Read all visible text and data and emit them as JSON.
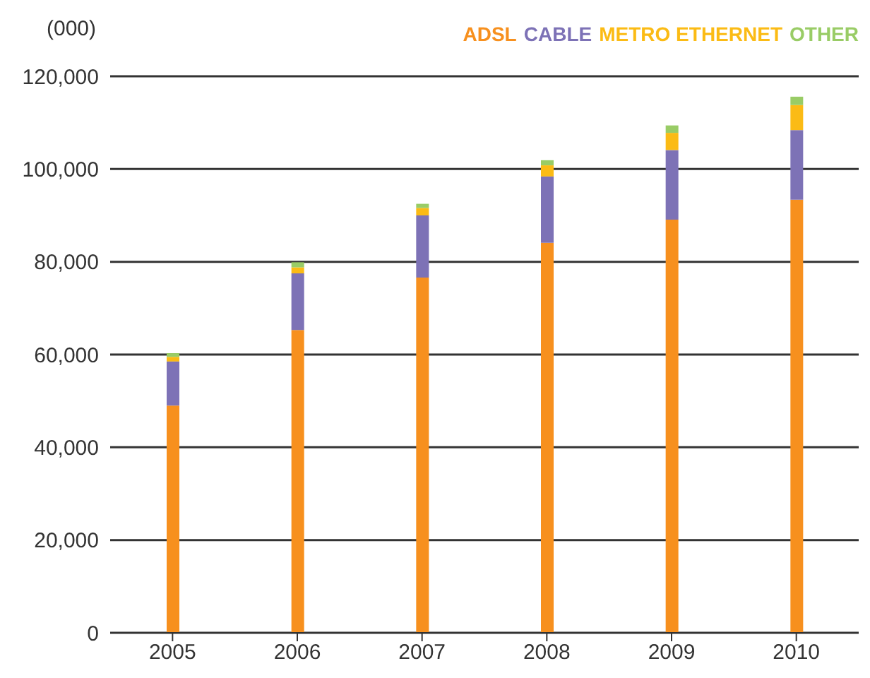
{
  "chart_data": {
    "type": "bar",
    "ylabel": "(000)",
    "stacked": true,
    "categories": [
      "2005",
      "2006",
      "2007",
      "2008",
      "2009",
      "2010"
    ],
    "series": [
      {
        "name": "ADSL",
        "color": "#f7901e",
        "values": [
          49000,
          65300,
          76600,
          84100,
          89100,
          93400
        ]
      },
      {
        "name": "CABLE",
        "color": "#7d72b6",
        "values": [
          9500,
          12200,
          13400,
          14300,
          15000,
          15000
        ]
      },
      {
        "name": "METRO ETHERNET",
        "color": "#fbbb15",
        "values": [
          1000,
          1300,
          1600,
          2400,
          3700,
          5400
        ]
      },
      {
        "name": "OTHER",
        "color": "#99cc66",
        "values": [
          800,
          1100,
          900,
          1100,
          1600,
          1800
        ]
      }
    ],
    "ylim": [
      0,
      120000
    ],
    "yticks": [
      0,
      {
        "value": 20000,
        "label": "20,000"
      },
      {
        "value": 40000,
        "label": "40,000"
      },
      {
        "value": 60000,
        "label": "60,000"
      },
      {
        "value": 80000,
        "label": "80,000"
      },
      {
        "value": 100000,
        "label": "100,000"
      },
      {
        "value": 120000,
        "label": "120,000"
      }
    ],
    "grid": "y",
    "legend": "top right"
  }
}
